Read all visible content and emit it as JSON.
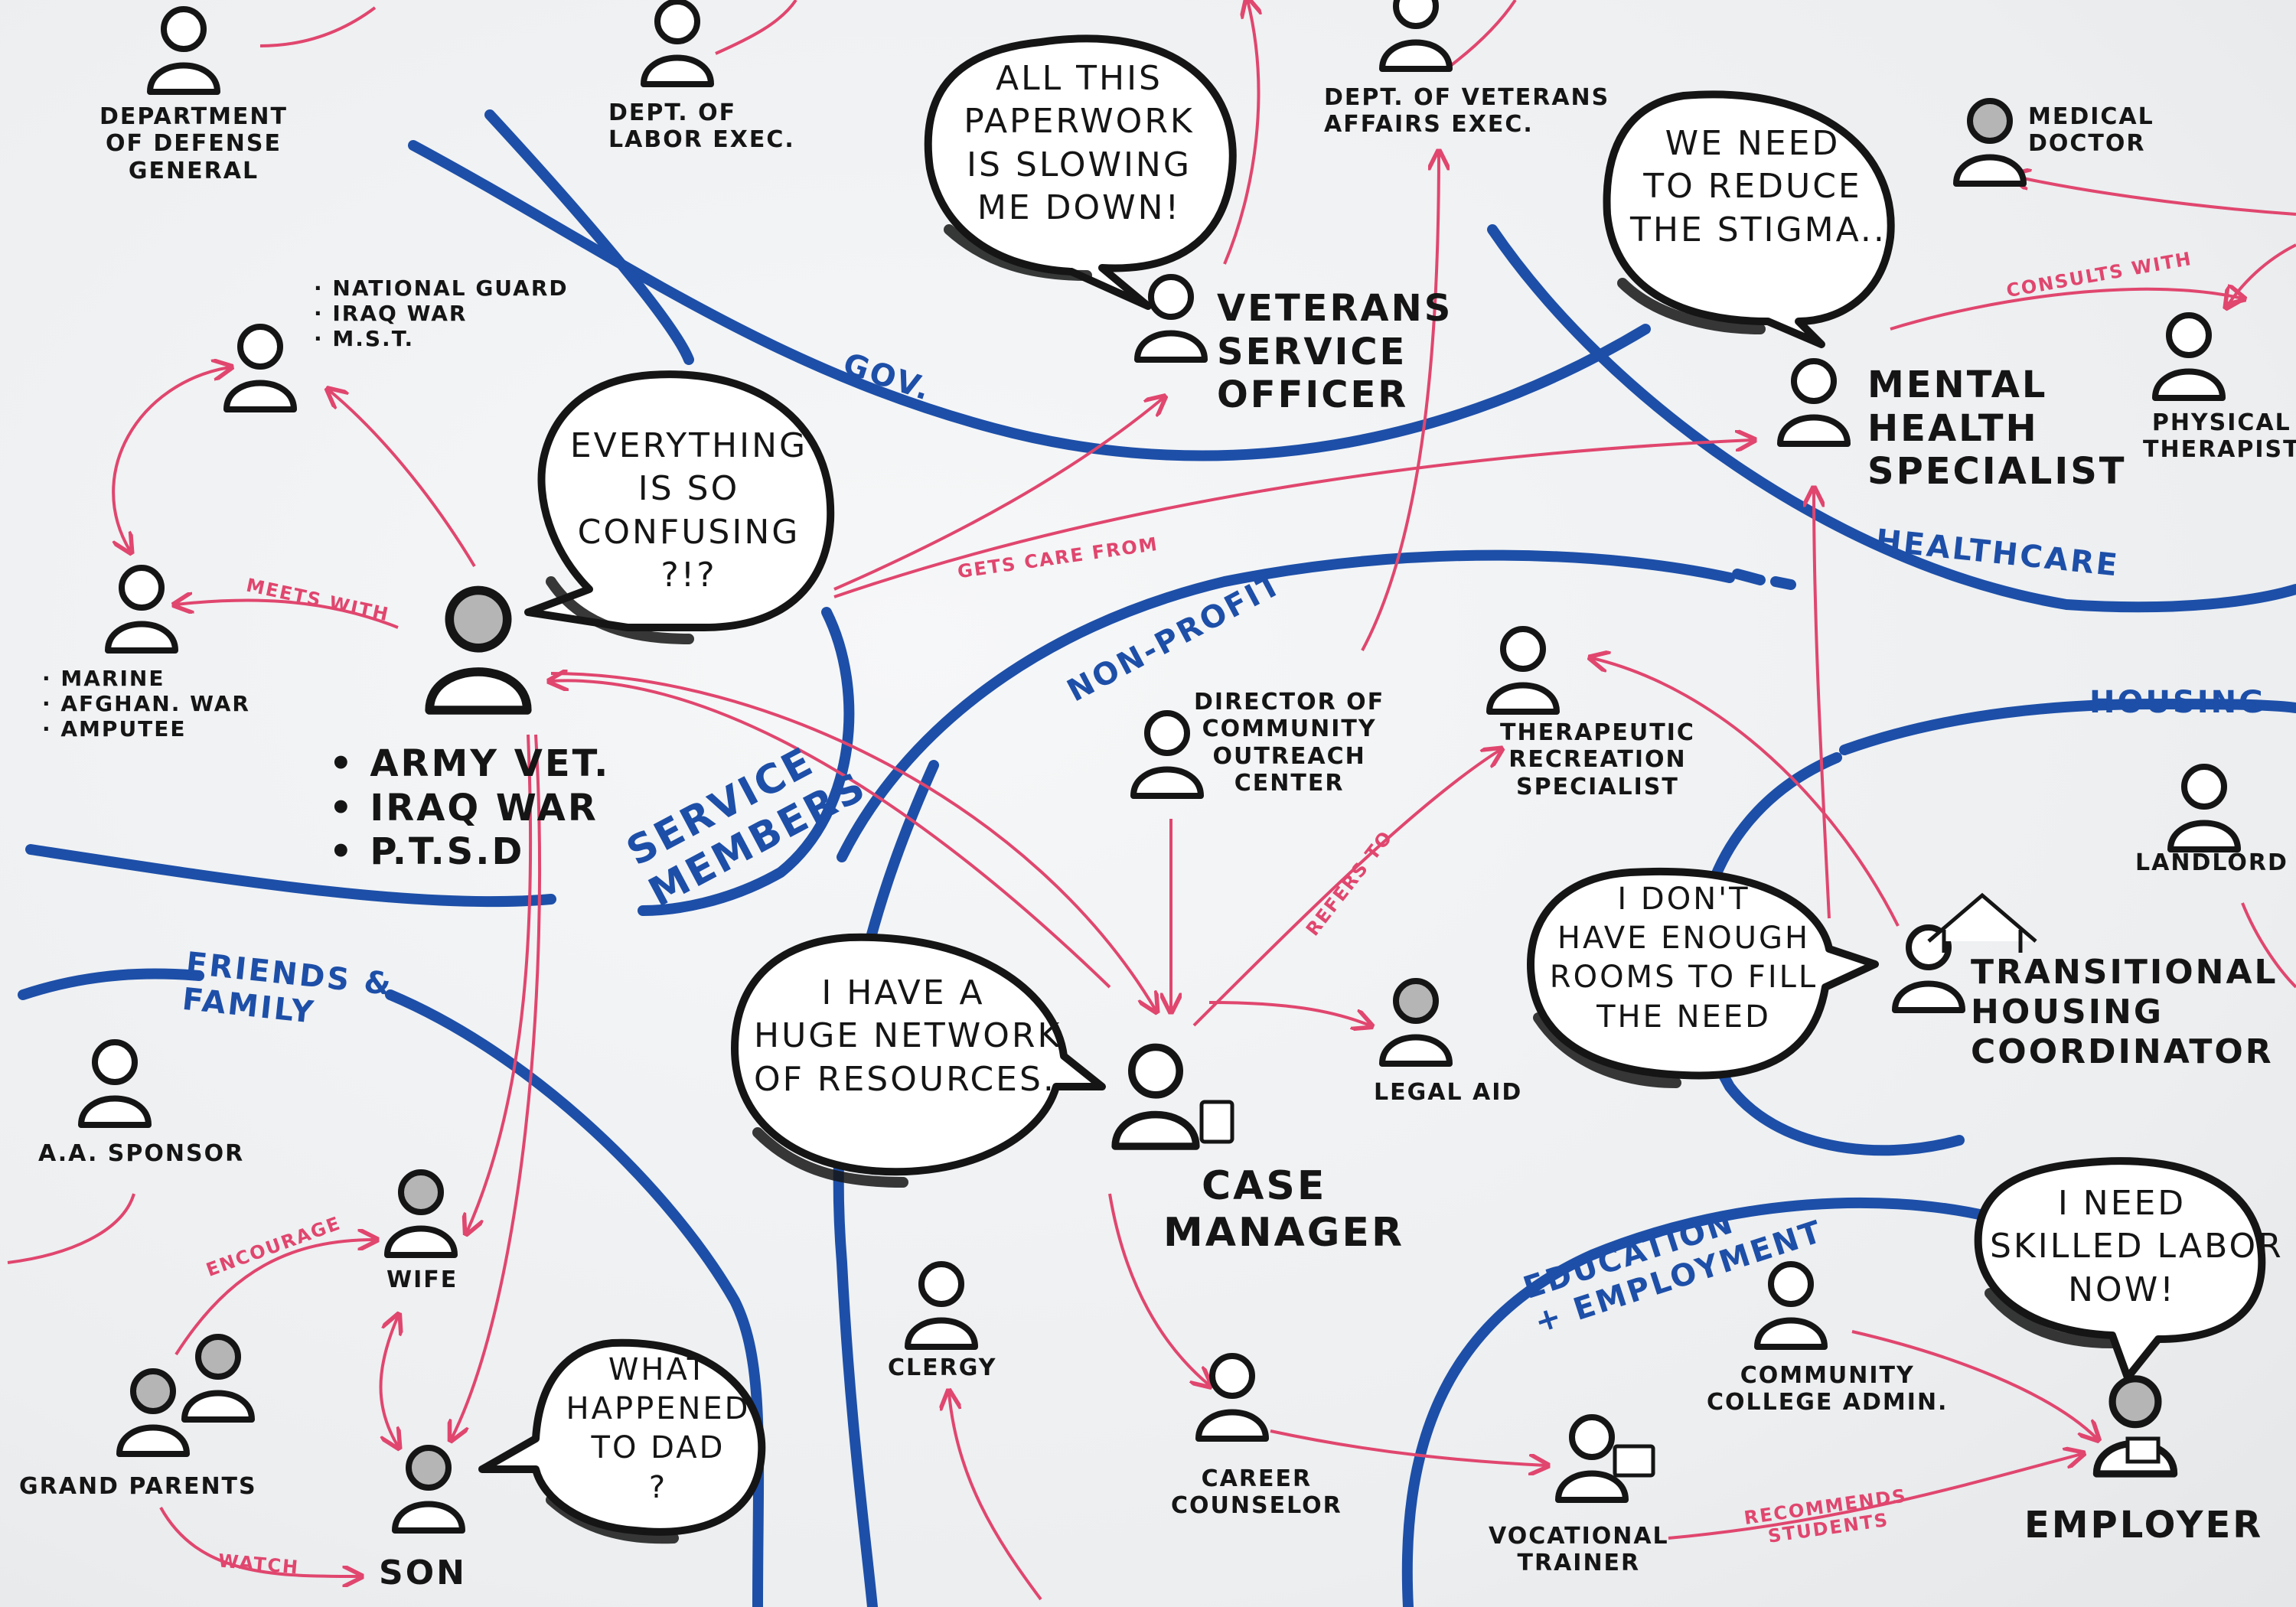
{
  "sectors": {
    "gov": "GOV.",
    "healthcare": "HEALTHCARE",
    "housing": "HOUSING",
    "non_profit": "NON-PROFIT",
    "service_members": [
      "SERVICE",
      "MEMBERS"
    ],
    "friends_family": [
      "FRIENDS &",
      "FAMILY"
    ],
    "education_employment": [
      "EDUCATION",
      "+ EMPLOYMENT"
    ]
  },
  "people": {
    "dod_general": [
      "DEPARTMENT",
      "OF DEFENSE",
      "GENERAL"
    ],
    "dol_exec": [
      "DEPT. OF",
      "LABOR EXEC."
    ],
    "va_exec": [
      "DEPT. OF VETERANS",
      "AFFAIRS EXEC."
    ],
    "medical_doctor": [
      "MEDICAL",
      "DOCTOR"
    ],
    "vso": [
      "VETERANS",
      "SERVICE",
      "OFFICER"
    ],
    "mental_health": [
      "MENTAL",
      "HEALTH",
      "SPECIALIST"
    ],
    "physical_therapist": [
      "PHYSICAL",
      "THERAPIST"
    ],
    "army_vet": [
      "• ARMY VET.",
      "• IRAQ WAR",
      "• P.T.S.D"
    ],
    "guard_traits": [
      "· NATIONAL GUARD",
      "· IRAQ WAR",
      "· M.S.T."
    ],
    "marine_traits": [
      "· MARINE",
      "· AFGHAN. WAR",
      "· AMPUTEE"
    ],
    "outreach_director": [
      "DIRECTOR OF",
      "COMMUNITY",
      "OUTREACH",
      "CENTER"
    ],
    "rec_specialist": [
      "THERAPEUTIC",
      "RECREATION",
      "SPECIALIST"
    ],
    "landlord": "LANDLORD",
    "housing_coordinator": [
      "TRANSITIONAL",
      "HOUSING",
      "COORDINATOR"
    ],
    "legal_aid": "LEGAL AID",
    "case_manager": [
      "CASE",
      "MANAGER"
    ],
    "aa_sponsor": "A.A. SPONSOR",
    "wife": "WIFE",
    "grandparents": "GRAND PARENTS",
    "son": "SON",
    "clergy": "CLERGY",
    "career_counselor": [
      "CAREER",
      "COUNSELOR"
    ],
    "vocational_trainer": [
      "VOCATIONAL",
      "TRAINER"
    ],
    "college_admin": [
      "COMMUNITY",
      "COLLEGE ADMIN."
    ],
    "employer": "EMPLOYER"
  },
  "bubbles": {
    "paperwork": [
      "ALL THIS",
      "PAPERWORK",
      "IS SLOWING",
      "ME DOWN!"
    ],
    "stigma": [
      "WE NEED",
      "TO REDUCE",
      "THE STIGMA..."
    ],
    "confusing": [
      "EVERYTHING",
      "IS SO",
      "CONFUSING",
      "?!?"
    ],
    "network": [
      "I HAVE A",
      "HUGE NETWORK",
      "OF RESOURCES."
    ],
    "rooms": [
      "I DON'T",
      "HAVE ENOUGH",
      "ROOMS TO FILL",
      "THE NEED"
    ],
    "skilled": [
      "I NEED",
      "SKILLED LABOR",
      "NOW!"
    ],
    "dad": [
      "WHAT",
      "HAPPENED",
      "TO DAD",
      "?"
    ]
  },
  "relations": {
    "meets_with": "MEETS WITH",
    "gets_care_from": "GETS CARE FROM",
    "consults_with": "CONSULTS WITH",
    "refers_to": "REFERS TO",
    "encourage": "ENCOURAGE",
    "watch": "WATCH",
    "recommends_students": [
      "RECOMMENDS",
      "STUDENTS"
    ]
  },
  "colors": {
    "ink": "#151515",
    "sector_blue": "#1d4fa8",
    "relation_pink": "#e0466e"
  }
}
